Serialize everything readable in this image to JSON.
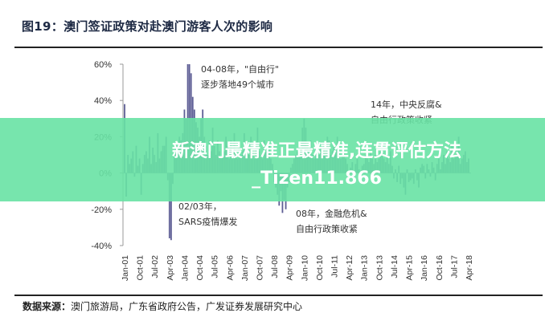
{
  "title": "图19：澳门签证政策对赴澳门游客人次的影响",
  "source": {
    "label": "数据来源：",
    "text": "澳门旅游局，广东省政府公告，广发证券发展研究中心"
  },
  "overlay_banner": {
    "text": "新澳门最精准正最精准,连贯评估方法_Tizen11.866",
    "color": "#68e2a4"
  },
  "chart_data": {
    "type": "bar",
    "title": "",
    "xlabel": "",
    "ylabel": "",
    "ylim": [
      -40,
      60
    ],
    "yticks": [
      "60%",
      "40%",
      "20%",
      "0%",
      "-20%",
      "-40%"
    ],
    "ytick_values": [
      60,
      40,
      20,
      0,
      -20,
      -40
    ],
    "grid": false,
    "bar_color": "#5e5e95",
    "x_start": "2001-01",
    "x_frequency": "monthly",
    "xticks": [
      "Jan-01",
      "Oct-01",
      "Jul-02",
      "Apr-03",
      "Jan-04",
      "Oct-04",
      "Jul-05",
      "Apr-06",
      "Jan-07",
      "Oct-07",
      "Jul-08",
      "Apr-09",
      "Jan-10",
      "Oct-10",
      "Jul-11",
      "Apr-12",
      "Jan-13",
      "Oct-13",
      "Jul-14",
      "Apr-15",
      "Jan-16",
      "Oct-16",
      "Jul-17",
      "Apr-18"
    ],
    "values": [
      38,
      -13,
      10,
      5,
      8,
      12,
      -2,
      15,
      4,
      8,
      -12,
      5,
      10,
      12,
      8,
      20,
      5,
      14,
      10,
      6,
      22,
      8,
      12,
      15,
      15,
      20,
      -4,
      -36,
      -37,
      -6,
      10,
      12,
      15,
      20,
      18,
      22,
      35,
      30,
      60,
      60,
      55,
      42,
      35,
      28,
      25,
      20,
      30,
      35,
      20,
      15,
      10,
      18,
      12,
      25,
      15,
      10,
      18,
      12,
      8,
      14,
      12,
      20,
      15,
      8,
      18,
      10,
      22,
      12,
      8,
      15,
      10,
      12,
      22,
      18,
      15,
      10,
      20,
      12,
      8,
      15,
      25,
      12,
      10,
      8,
      18,
      12,
      10,
      15,
      8,
      5,
      -5,
      -8,
      -12,
      -18,
      -10,
      -22,
      -15,
      -20,
      -8,
      -5,
      3,
      5,
      8,
      10,
      12,
      15,
      10,
      25,
      30,
      25,
      15,
      12,
      18,
      10,
      8,
      15,
      12,
      10,
      14,
      12,
      15,
      12,
      20,
      18,
      10,
      12,
      15,
      14,
      20,
      12,
      8,
      10,
      12,
      8,
      5,
      -2,
      3,
      6,
      -4,
      5,
      8,
      2,
      -3,
      4,
      5,
      10,
      8,
      6,
      12,
      8,
      5,
      10,
      6,
      8,
      12,
      10,
      8,
      6,
      10,
      5,
      12,
      4,
      -3,
      2,
      -5,
      4,
      -6,
      -3,
      -8,
      -12,
      2,
      -5,
      -4,
      -3,
      -6,
      2,
      -4,
      -8,
      3,
      5,
      4,
      -3,
      5,
      2,
      -2,
      6,
      3,
      -4,
      5,
      8,
      2,
      6,
      10,
      5,
      12,
      8,
      6,
      15,
      8,
      10,
      12,
      20,
      5,
      8,
      10,
      12,
      6,
      8
    ],
    "annotations": [
      {
        "lines": [
          "04-08年，\"自由行\"",
          "逐步落地49个城市"
        ]
      },
      {
        "lines": [
          "14年，中央反腐&",
          "自由行政策收紧"
        ]
      },
      {
        "lines": [
          "02/03年，",
          "SARS疫情爆发"
        ]
      },
      {
        "lines": [
          "08年，金融危机&",
          "自由行政策收紧"
        ]
      }
    ]
  }
}
